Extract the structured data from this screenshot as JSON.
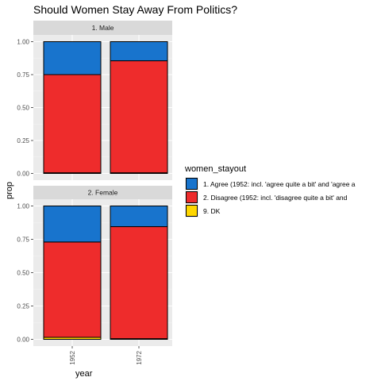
{
  "chart_data": {
    "type": "bar",
    "stacked": true,
    "title": "Should Women Stay Away From Politics?",
    "xlabel": "year",
    "ylabel": "prop",
    "categories": [
      "1952",
      "1972"
    ],
    "y_ticks": [
      "0.00",
      "0.25",
      "0.50",
      "0.75",
      "1.00"
    ],
    "ylim": [
      0,
      1
    ],
    "grid": true,
    "legend_position": "right",
    "legend_title": "women_stayout",
    "colors": {
      "panel_bg": "#EBEBEB",
      "grid_major": "#FFFFFF",
      "strip_bg": "#D9D9D9",
      "bar_outline": "#000000"
    },
    "series": [
      {
        "name": "1. Agree (1952: incl. 'agree quite a bit' and 'agree a",
        "color": "#1874CD"
      },
      {
        "name": "2. Disagree (1952: incl. 'disagree quite a bit' and",
        "color": "#EE2C2C"
      },
      {
        "name": "9. DK",
        "color": "#FFD700"
      }
    ],
    "facets": [
      {
        "label": "1. Male",
        "values": [
          {
            "Agree": 0.25,
            "Disagree": 0.745,
            "DK": 0.005
          },
          {
            "Agree": 0.145,
            "Disagree": 0.85,
            "DK": 0.005
          }
        ]
      },
      {
        "label": "2. Female",
        "values": [
          {
            "Agree": 0.27,
            "Disagree": 0.715,
            "DK": 0.015
          },
          {
            "Agree": 0.155,
            "Disagree": 0.84,
            "DK": 0.005
          }
        ]
      }
    ]
  }
}
